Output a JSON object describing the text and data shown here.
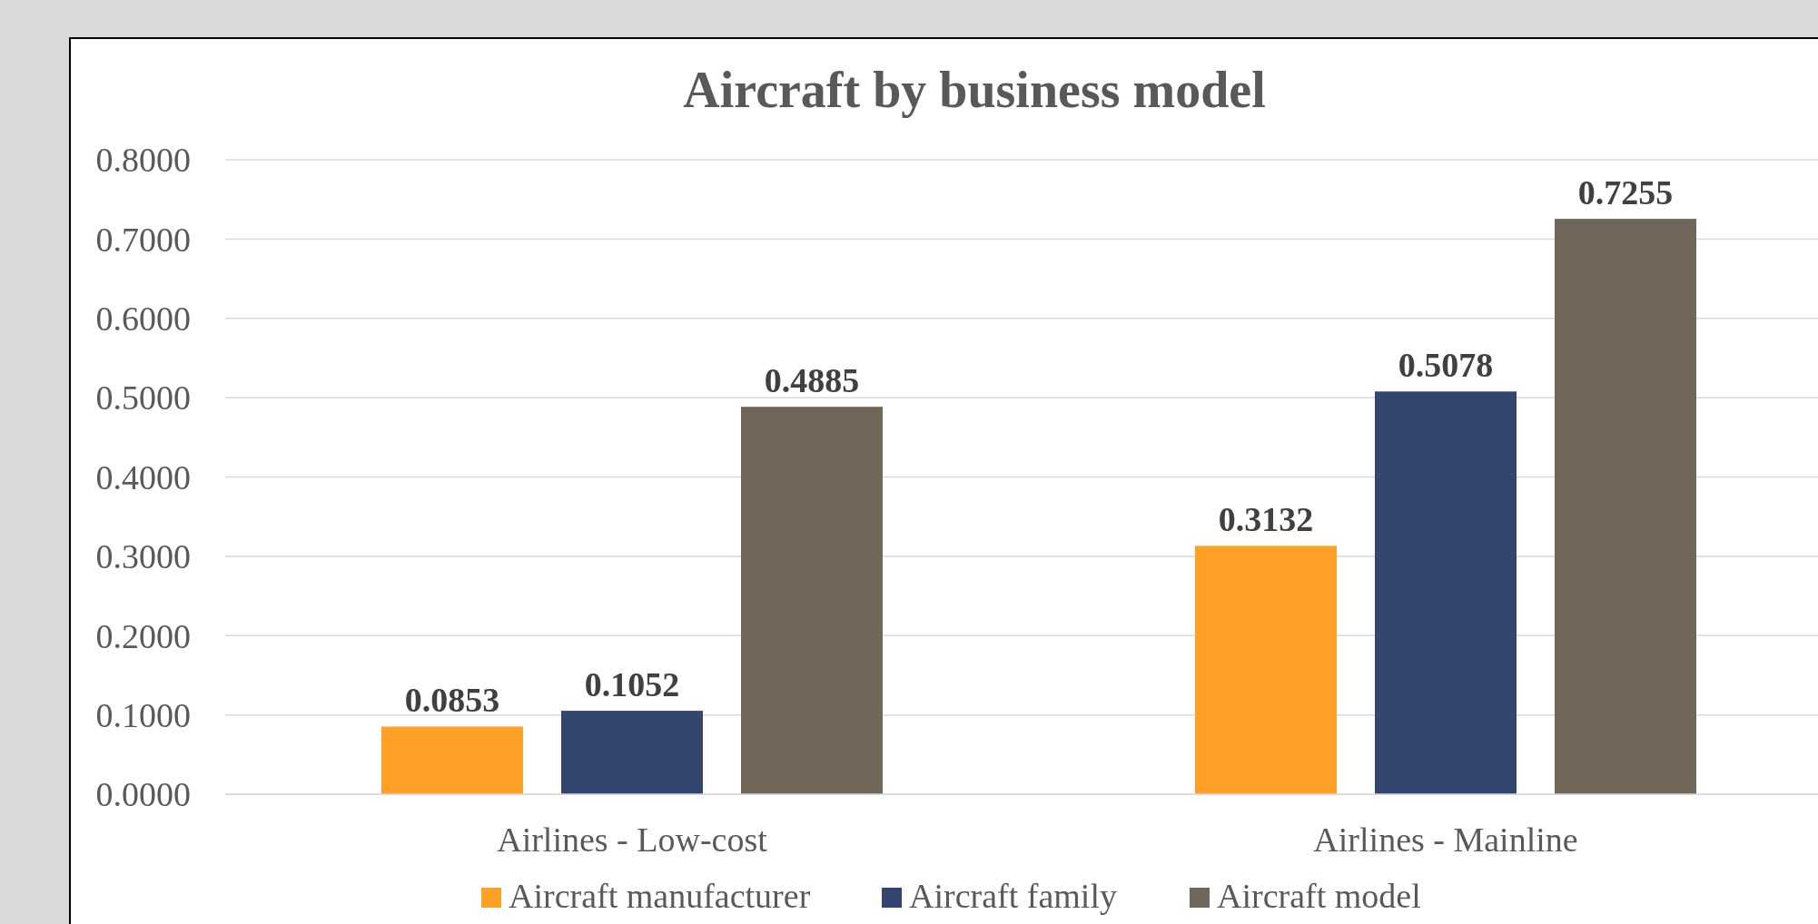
{
  "chart_data": {
    "type": "bar",
    "title": "Aircraft by business model",
    "categories": [
      "Airlines - Low-cost",
      "Airlines - Mainline"
    ],
    "series": [
      {
        "name": "Aircraft manufacturer",
        "color": "#ffa126",
        "values": [
          0.0853,
          0.3132
        ]
      },
      {
        "name": "Aircraft family",
        "color": "#344570",
        "values": [
          0.1052,
          0.5078
        ]
      },
      {
        "name": "Aircraft model",
        "color": "#70675a",
        "values": [
          0.4885,
          0.7255
        ]
      }
    ],
    "ylim": [
      0,
      0.8
    ],
    "yticks": [
      {
        "value": 0,
        "label": "0.0000"
      },
      {
        "value": 0.1,
        "label": "0.1000"
      },
      {
        "value": 0.2,
        "label": "0.2000"
      },
      {
        "value": 0.3,
        "label": "0.3000"
      },
      {
        "value": 0.4,
        "label": "0.4000"
      },
      {
        "value": 0.5,
        "label": "0.5000"
      },
      {
        "value": 0.6,
        "label": "0.6000"
      },
      {
        "value": 0.7,
        "label": "0.7000"
      },
      {
        "value": 0.8,
        "label": "0.8000"
      }
    ],
    "grid": "y",
    "legend": "bottom",
    "value_labels": [
      [
        "0.0853",
        "0.3132"
      ],
      [
        "0.1052",
        "0.5078"
      ],
      [
        "0.4885",
        "0.7255"
      ]
    ]
  }
}
